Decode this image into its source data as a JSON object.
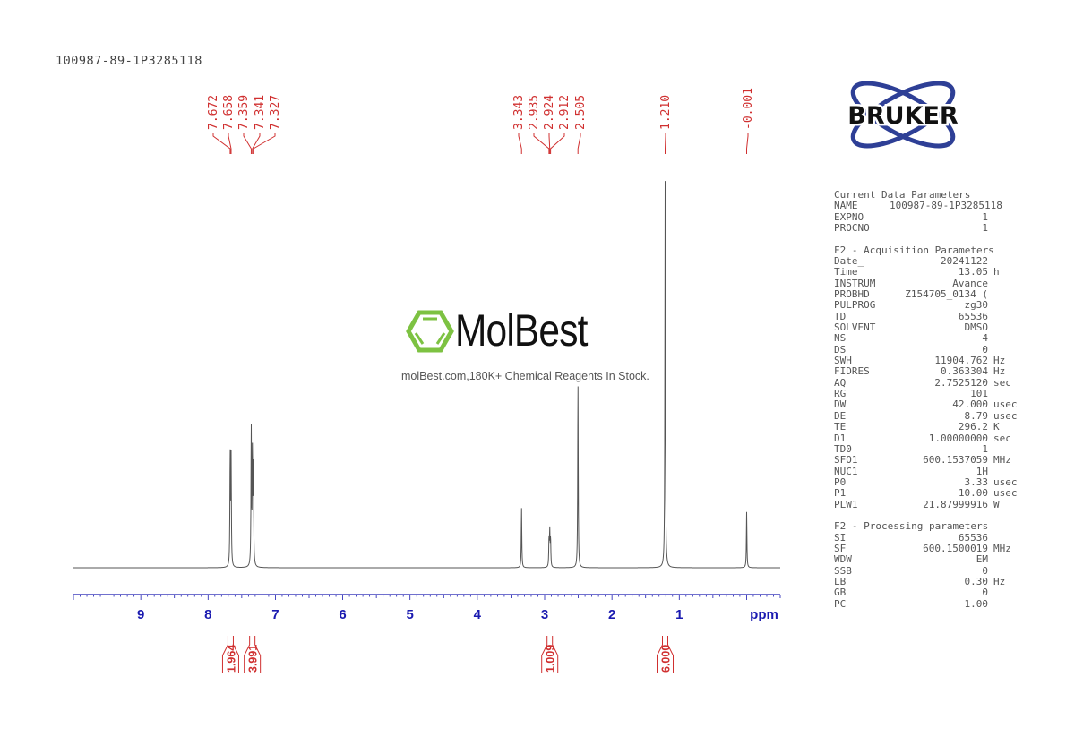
{
  "sample_title": "100987-89-1P3285118",
  "logo": {
    "text": "BRUKER",
    "color": "#2e3f96"
  },
  "watermark": {
    "name": "MolBest",
    "tagline": "molBest.com,180K+ Chemical Reagents In Stock.",
    "color": "#7dc242"
  },
  "parameters": [
    {
      "title": "Current Data Parameters",
      "rows": [
        [
          "NAME",
          "100987-89-1P3285118",
          ""
        ],
        [
          "EXPNO",
          "1",
          ""
        ],
        [
          "PROCNO",
          "1",
          ""
        ]
      ]
    },
    {
      "title": "F2 - Acquisition Parameters",
      "rows": [
        [
          "Date_",
          "20241122",
          ""
        ],
        [
          "Time",
          "13.05",
          "h"
        ],
        [
          "INSTRUM",
          "Avance",
          ""
        ],
        [
          "PROBHD",
          "Z154705_0134 (",
          ""
        ],
        [
          "PULPROG",
          "zg30",
          ""
        ],
        [
          "TD",
          "65536",
          ""
        ],
        [
          "SOLVENT",
          "DMSO",
          ""
        ],
        [
          "NS",
          "4",
          ""
        ],
        [
          "DS",
          "0",
          ""
        ],
        [
          "SWH",
          "11904.762",
          "Hz"
        ],
        [
          "FIDRES",
          "0.363304",
          "Hz"
        ],
        [
          "AQ",
          "2.7525120",
          "sec"
        ],
        [
          "RG",
          "101",
          ""
        ],
        [
          "DW",
          "42.000",
          "usec"
        ],
        [
          "DE",
          "8.79",
          "usec"
        ],
        [
          "TE",
          "296.2",
          "K"
        ],
        [
          "D1",
          "1.00000000",
          "sec"
        ],
        [
          "TD0",
          "1",
          ""
        ],
        [
          "SFO1",
          "600.1537059",
          "MHz"
        ],
        [
          "NUC1",
          "1H",
          ""
        ],
        [
          "P0",
          "3.33",
          "usec"
        ],
        [
          "P1",
          "10.00",
          "usec"
        ],
        [
          "PLW1",
          "21.87999916",
          "W"
        ]
      ]
    },
    {
      "title": "F2 - Processing parameters",
      "rows": [
        [
          "SI",
          "65536",
          ""
        ],
        [
          "SF",
          "600.1500019",
          "MHz"
        ],
        [
          "WDW",
          "EM",
          ""
        ],
        [
          "SSB",
          "0",
          ""
        ],
        [
          "LB",
          "0.30",
          "Hz"
        ],
        [
          "GB",
          "0",
          ""
        ],
        [
          "PC",
          "1.00",
          ""
        ]
      ]
    }
  ],
  "chart_data": {
    "type": "line",
    "xlabel": "ppm",
    "xlim": [
      10.0,
      -0.5
    ],
    "x_ticks": [
      "9",
      "8",
      "7",
      "6",
      "5",
      "4",
      "3",
      "2",
      "1"
    ],
    "x_tick_values": [
      9,
      8,
      7,
      6,
      5,
      4,
      3,
      2,
      1
    ],
    "axis_color": "#1a1ab0",
    "label_color": "#d03030",
    "peaks": [
      {
        "ppm": 7.672,
        "label": "7.672",
        "intensity": 28.5
      },
      {
        "ppm": 7.658,
        "label": "7.658",
        "intensity": 27.8
      },
      {
        "ppm": 7.359,
        "label": "7.359",
        "intensity": 35.4
      },
      {
        "ppm": 7.341,
        "label": "7.341",
        "intensity": 28.2
      },
      {
        "ppm": 7.327,
        "label": "7.327",
        "intensity": 26.0
      },
      {
        "ppm": 3.343,
        "label": "3.343",
        "intensity": 15.5
      },
      {
        "ppm": 2.935,
        "label": "2.935",
        "intensity": 7.0
      },
      {
        "ppm": 2.924,
        "label": "2.924",
        "intensity": 8.8
      },
      {
        "ppm": 2.912,
        "label": "2.912",
        "intensity": 7.0
      },
      {
        "ppm": 2.505,
        "label": "2.505",
        "intensity": 48.0
      },
      {
        "ppm": 1.21,
        "label": "1.210",
        "intensity": 100.0
      },
      {
        "ppm": -0.001,
        "label": "-0.001",
        "intensity": 14.4
      }
    ],
    "integrals": [
      {
        "ppm": 7.665,
        "value": "1.964"
      },
      {
        "ppm": 7.343,
        "value": "3.991"
      },
      {
        "ppm": 2.924,
        "value": "1.009"
      },
      {
        "ppm": 1.21,
        "value": "6.000"
      }
    ]
  }
}
